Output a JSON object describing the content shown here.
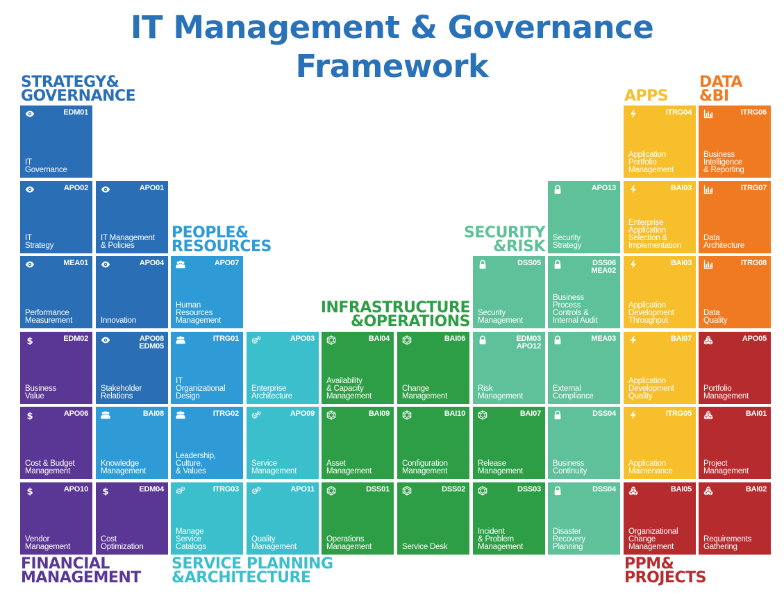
{
  "title": {
    "line1": "IT Management & Governance",
    "line2": "Framework"
  },
  "colors": {
    "strategy": "#2a6fb5",
    "people": "#2e9bd6",
    "financial": "#5b3795",
    "service": "#3cbfcc",
    "infra": "#2e9e46",
    "security": "#5ec199",
    "apps": "#f6bf2b",
    "data": "#f07a22",
    "ppm": "#b52b2e"
  },
  "groups": {
    "strategy": "STRATEGY&\nGOVERNANCE",
    "people": "PEOPLE&\nRESOURCES",
    "infra": "INFRASTRUCTURE\n&OPERATIONS",
    "security": "SECURITY\n&RISK",
    "apps": "APPS",
    "data": "DATA\n&BI",
    "financial": "FINANCIAL\nMANAGEMENT",
    "service": "SERVICE PLANNING\n&ARCHITECTURE",
    "ppm": "PPM&\nPROJECTS"
  },
  "tiles": [
    {
      "col": 0,
      "row": 0,
      "cat": "strategy",
      "icon": "eye-icon",
      "code": "EDM01",
      "name": "IT\nGovernance"
    },
    {
      "col": 0,
      "row": 1,
      "cat": "strategy",
      "icon": "eye-icon",
      "code": "APO02",
      "name": "IT\nStrategy"
    },
    {
      "col": 1,
      "row": 1,
      "cat": "strategy",
      "icon": "eye-icon",
      "code": "APO01",
      "name": "IT Management\n& Policies"
    },
    {
      "col": 0,
      "row": 2,
      "cat": "strategy",
      "icon": "eye-icon",
      "code": "MEA01",
      "name": "Performance\nMeasurement"
    },
    {
      "col": 1,
      "row": 2,
      "cat": "strategy",
      "icon": "eye-icon",
      "code": "APO04",
      "name": "Innovation"
    },
    {
      "col": 2,
      "row": 2,
      "cat": "people",
      "icon": "people-icon",
      "code": "APO07",
      "name": "Human\nResources\nManagement"
    },
    {
      "col": 0,
      "row": 3,
      "cat": "financial",
      "icon": "dollar-icon",
      "code": "EDM02",
      "name": "Business\nValue"
    },
    {
      "col": 1,
      "row": 3,
      "cat": "strategy",
      "icon": "eye-icon",
      "code": "APO08\nEDM05",
      "name": "Stakeholder\nRelations"
    },
    {
      "col": 2,
      "row": 3,
      "cat": "people",
      "icon": "people-icon",
      "code": "ITRG01",
      "name": "IT\nOrganizational\nDesign"
    },
    {
      "col": 3,
      "row": 3,
      "cat": "service",
      "icon": "gears-icon",
      "code": "APO03",
      "name": "Enterprise\nArchitecture"
    },
    {
      "col": 4,
      "row": 3,
      "cat": "infra",
      "icon": "hexagon-icon",
      "code": "BAI04",
      "name": "Availability\n& Capacity\nManagement"
    },
    {
      "col": 5,
      "row": 3,
      "cat": "infra",
      "icon": "hexagon-icon",
      "code": "BAI06",
      "name": "Change\nManagement"
    },
    {
      "col": 6,
      "row": 3,
      "cat": "security",
      "icon": "lock-icon",
      "code": "EDM03\nAPO12",
      "name": "Risk\nManagement"
    },
    {
      "col": 7,
      "row": 3,
      "cat": "security",
      "icon": "lock-icon",
      "code": "MEA03",
      "name": "External\nCompliance"
    },
    {
      "col": 8,
      "row": 3,
      "cat": "apps",
      "icon": "bolt-icon",
      "code": "BAI07",
      "name": "Application\nDevelopment\nQuality"
    },
    {
      "col": 9,
      "row": 3,
      "cat": "ppm",
      "icon": "blocks-icon",
      "code": "APO05",
      "name": "Portfolio\nManagement"
    },
    {
      "col": 0,
      "row": 4,
      "cat": "financial",
      "icon": "dollar-icon",
      "code": "APO06",
      "name": "Cost & Budget\nManagement"
    },
    {
      "col": 1,
      "row": 4,
      "cat": "people",
      "icon": "people-icon",
      "code": "BAI08",
      "name": "Knowledge\nManagement"
    },
    {
      "col": 2,
      "row": 4,
      "cat": "people",
      "icon": "people-icon",
      "code": "ITRG02",
      "name": "Leadership,\nCulture,\n& Values"
    },
    {
      "col": 3,
      "row": 4,
      "cat": "service",
      "icon": "gears-icon",
      "code": "APO09",
      "name": "Service\nManagement"
    },
    {
      "col": 4,
      "row": 4,
      "cat": "infra",
      "icon": "hexagon-icon",
      "code": "BAI09",
      "name": "Asset\nManagement"
    },
    {
      "col": 5,
      "row": 4,
      "cat": "infra",
      "icon": "hexagon-icon",
      "code": "BAI10",
      "name": "Configuration\nManagement"
    },
    {
      "col": 6,
      "row": 4,
      "cat": "infra",
      "icon": "hexagon-icon",
      "code": "BAI07",
      "name": "Release\nManagement"
    },
    {
      "col": 7,
      "row": 4,
      "cat": "security",
      "icon": "lock-icon",
      "code": "DSS04",
      "name": "Business\nContinuity"
    },
    {
      "col": 8,
      "row": 4,
      "cat": "apps",
      "icon": "bolt-icon",
      "code": "ITRG05",
      "name": "Application\nMaintenance"
    },
    {
      "col": 9,
      "row": 4,
      "cat": "ppm",
      "icon": "blocks-icon",
      "code": "BAI01",
      "name": "Project\nManagement"
    },
    {
      "col": 0,
      "row": 5,
      "cat": "financial",
      "icon": "dollar-icon",
      "code": "APO10",
      "name": "Vendor\nManagement"
    },
    {
      "col": 1,
      "row": 5,
      "cat": "financial",
      "icon": "dollar-icon",
      "code": "EDM04",
      "name": "Cost\nOptimization"
    },
    {
      "col": 2,
      "row": 5,
      "cat": "service",
      "icon": "gears-icon",
      "code": "ITRG03",
      "name": "Manage\nService\nCatalogs"
    },
    {
      "col": 3,
      "row": 5,
      "cat": "service",
      "icon": "gears-icon",
      "code": "APO11",
      "name": "Quality\nManagement"
    },
    {
      "col": 4,
      "row": 5,
      "cat": "infra",
      "icon": "hexagon-icon",
      "code": "DSS01",
      "name": "Operations\nManagement"
    },
    {
      "col": 5,
      "row": 5,
      "cat": "infra",
      "icon": "hexagon-icon",
      "code": "DSS02",
      "name": "Service Desk"
    },
    {
      "col": 6,
      "row": 5,
      "cat": "infra",
      "icon": "hexagon-icon",
      "code": "DSS03",
      "name": "Incident\n& Problem\nManagement"
    },
    {
      "col": 7,
      "row": 5,
      "cat": "security",
      "icon": "lock-icon",
      "code": "DSS04",
      "name": "Disaster\nRecovery\nPlanning"
    },
    {
      "col": 8,
      "row": 5,
      "cat": "ppm",
      "icon": "blocks-icon",
      "code": "BAI05",
      "name": "Organizational\nChange\nManagement"
    },
    {
      "col": 9,
      "row": 5,
      "cat": "ppm",
      "icon": "blocks-icon",
      "code": "BAI02",
      "name": "Requirements\nGathering"
    },
    {
      "col": 6,
      "row": 2,
      "cat": "security",
      "icon": "lock-icon",
      "code": "DSS05",
      "name": "Security\nManagement"
    },
    {
      "col": 7,
      "row": 2,
      "cat": "security",
      "icon": "lock-icon",
      "code": "DSS06\nMEA02",
      "name": "Business\nProcess\nControls &\nInternal Audit"
    },
    {
      "col": 8,
      "row": 2,
      "cat": "apps",
      "icon": "bolt-icon",
      "code": "BAI03",
      "name": "Application\nDevelopment\nThroughput"
    },
    {
      "col": 9,
      "row": 2,
      "cat": "data",
      "icon": "chart-icon",
      "code": "ITRG08",
      "name": "Data\nQuality"
    },
    {
      "col": 7,
      "row": 1,
      "cat": "security",
      "icon": "lock-icon",
      "code": "APO13",
      "name": "Security\nStrategy"
    },
    {
      "col": 8,
      "row": 1,
      "cat": "apps",
      "icon": "bolt-icon",
      "code": "BAI03",
      "name": "Enterprise\nApplication\nSelection &\nImplementation"
    },
    {
      "col": 9,
      "row": 1,
      "cat": "data",
      "icon": "chart-icon",
      "code": "ITRG07",
      "name": "Data\nArchitecture"
    },
    {
      "col": 8,
      "row": 0,
      "cat": "apps",
      "icon": "bolt-icon",
      "code": "ITRG04",
      "name": "Application\nPortfolio\nManagement"
    },
    {
      "col": 9,
      "row": 0,
      "cat": "data",
      "icon": "chart-icon",
      "code": "ITRG06",
      "name": "Business\nIntelligence\n& Reporting"
    }
  ]
}
